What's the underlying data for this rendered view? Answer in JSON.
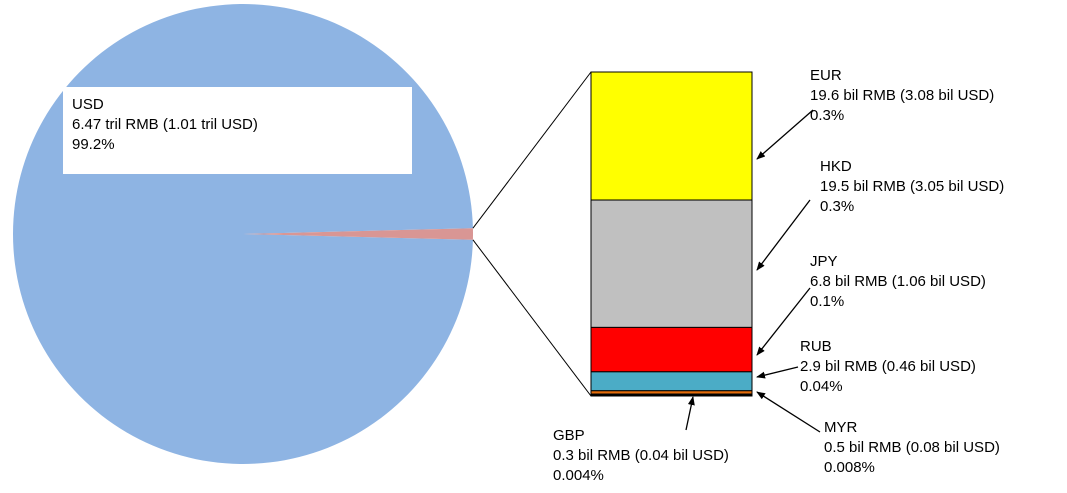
{
  "chart_data": {
    "type": "pie",
    "subtype": "bar-of-pie",
    "slices": [
      {
        "currency": "USD",
        "line2": "6.47 tril RMB (1.01 tril USD)",
        "pct_label": "99.2%",
        "percent": 99.2,
        "color": "#8eb4e3"
      }
    ],
    "breakdown": [
      {
        "currency": "EUR",
        "line2": "19.6 bil RMB (3.08 bil USD)",
        "pct_label": "0.3%",
        "rmb_bil": 19.6,
        "color": "#ffff00"
      },
      {
        "currency": "HKD",
        "line2": "19.5 bil RMB (3.05 bil USD)",
        "pct_label": "0.3%",
        "rmb_bil": 19.5,
        "color": "#c0c0c0"
      },
      {
        "currency": "JPY",
        "line2": "6.8 bil RMB (1.06 bil USD)",
        "pct_label": "0.1%",
        "rmb_bil": 6.8,
        "color": "#ff0000"
      },
      {
        "currency": "RUB",
        "line2": "2.9 bil RMB (0.46 bil USD)",
        "pct_label": "0.04%",
        "rmb_bil": 2.9,
        "color": "#4bacc6"
      },
      {
        "currency": "MYR",
        "line2": "0.5 bil RMB (0.08 bil USD)",
        "pct_label": "0.008%",
        "rmb_bil": 0.5,
        "color": "#e46c0a"
      },
      {
        "currency": "GBP",
        "line2": "0.3 bil RMB (0.04 bil USD)",
        "pct_label": "0.004%",
        "rmb_bil": 0.3,
        "color": "#000000"
      }
    ],
    "other_slice_color": "#d99694"
  }
}
